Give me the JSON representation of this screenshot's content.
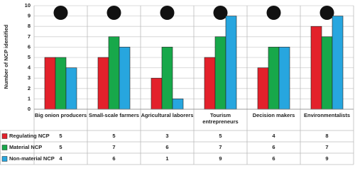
{
  "chart_data": {
    "type": "bar",
    "ylabel": "Number of NCP identified",
    "categories": [
      "Big onion producers",
      "Small-scale farmers",
      "Agricultural laborers",
      "Tourism entrepreneurs",
      "Decision makers",
      "Environmentalists"
    ],
    "series": [
      {
        "name": "Regulating NCP",
        "color": "#e3212b",
        "values": [
          5,
          5,
          3,
          5,
          4,
          8
        ]
      },
      {
        "name": "Material NCP",
        "color": "#17a84a",
        "values": [
          5,
          7,
          6,
          7,
          6,
          7
        ]
      },
      {
        "name": "Non-material NCP",
        "color": "#27a6df",
        "values": [
          4,
          6,
          1,
          9,
          6,
          9
        ]
      }
    ],
    "ylim": [
      0,
      10
    ],
    "yticks": [
      0,
      1,
      2,
      3,
      4,
      5,
      6,
      7,
      8,
      9,
      10
    ],
    "grid": true
  }
}
